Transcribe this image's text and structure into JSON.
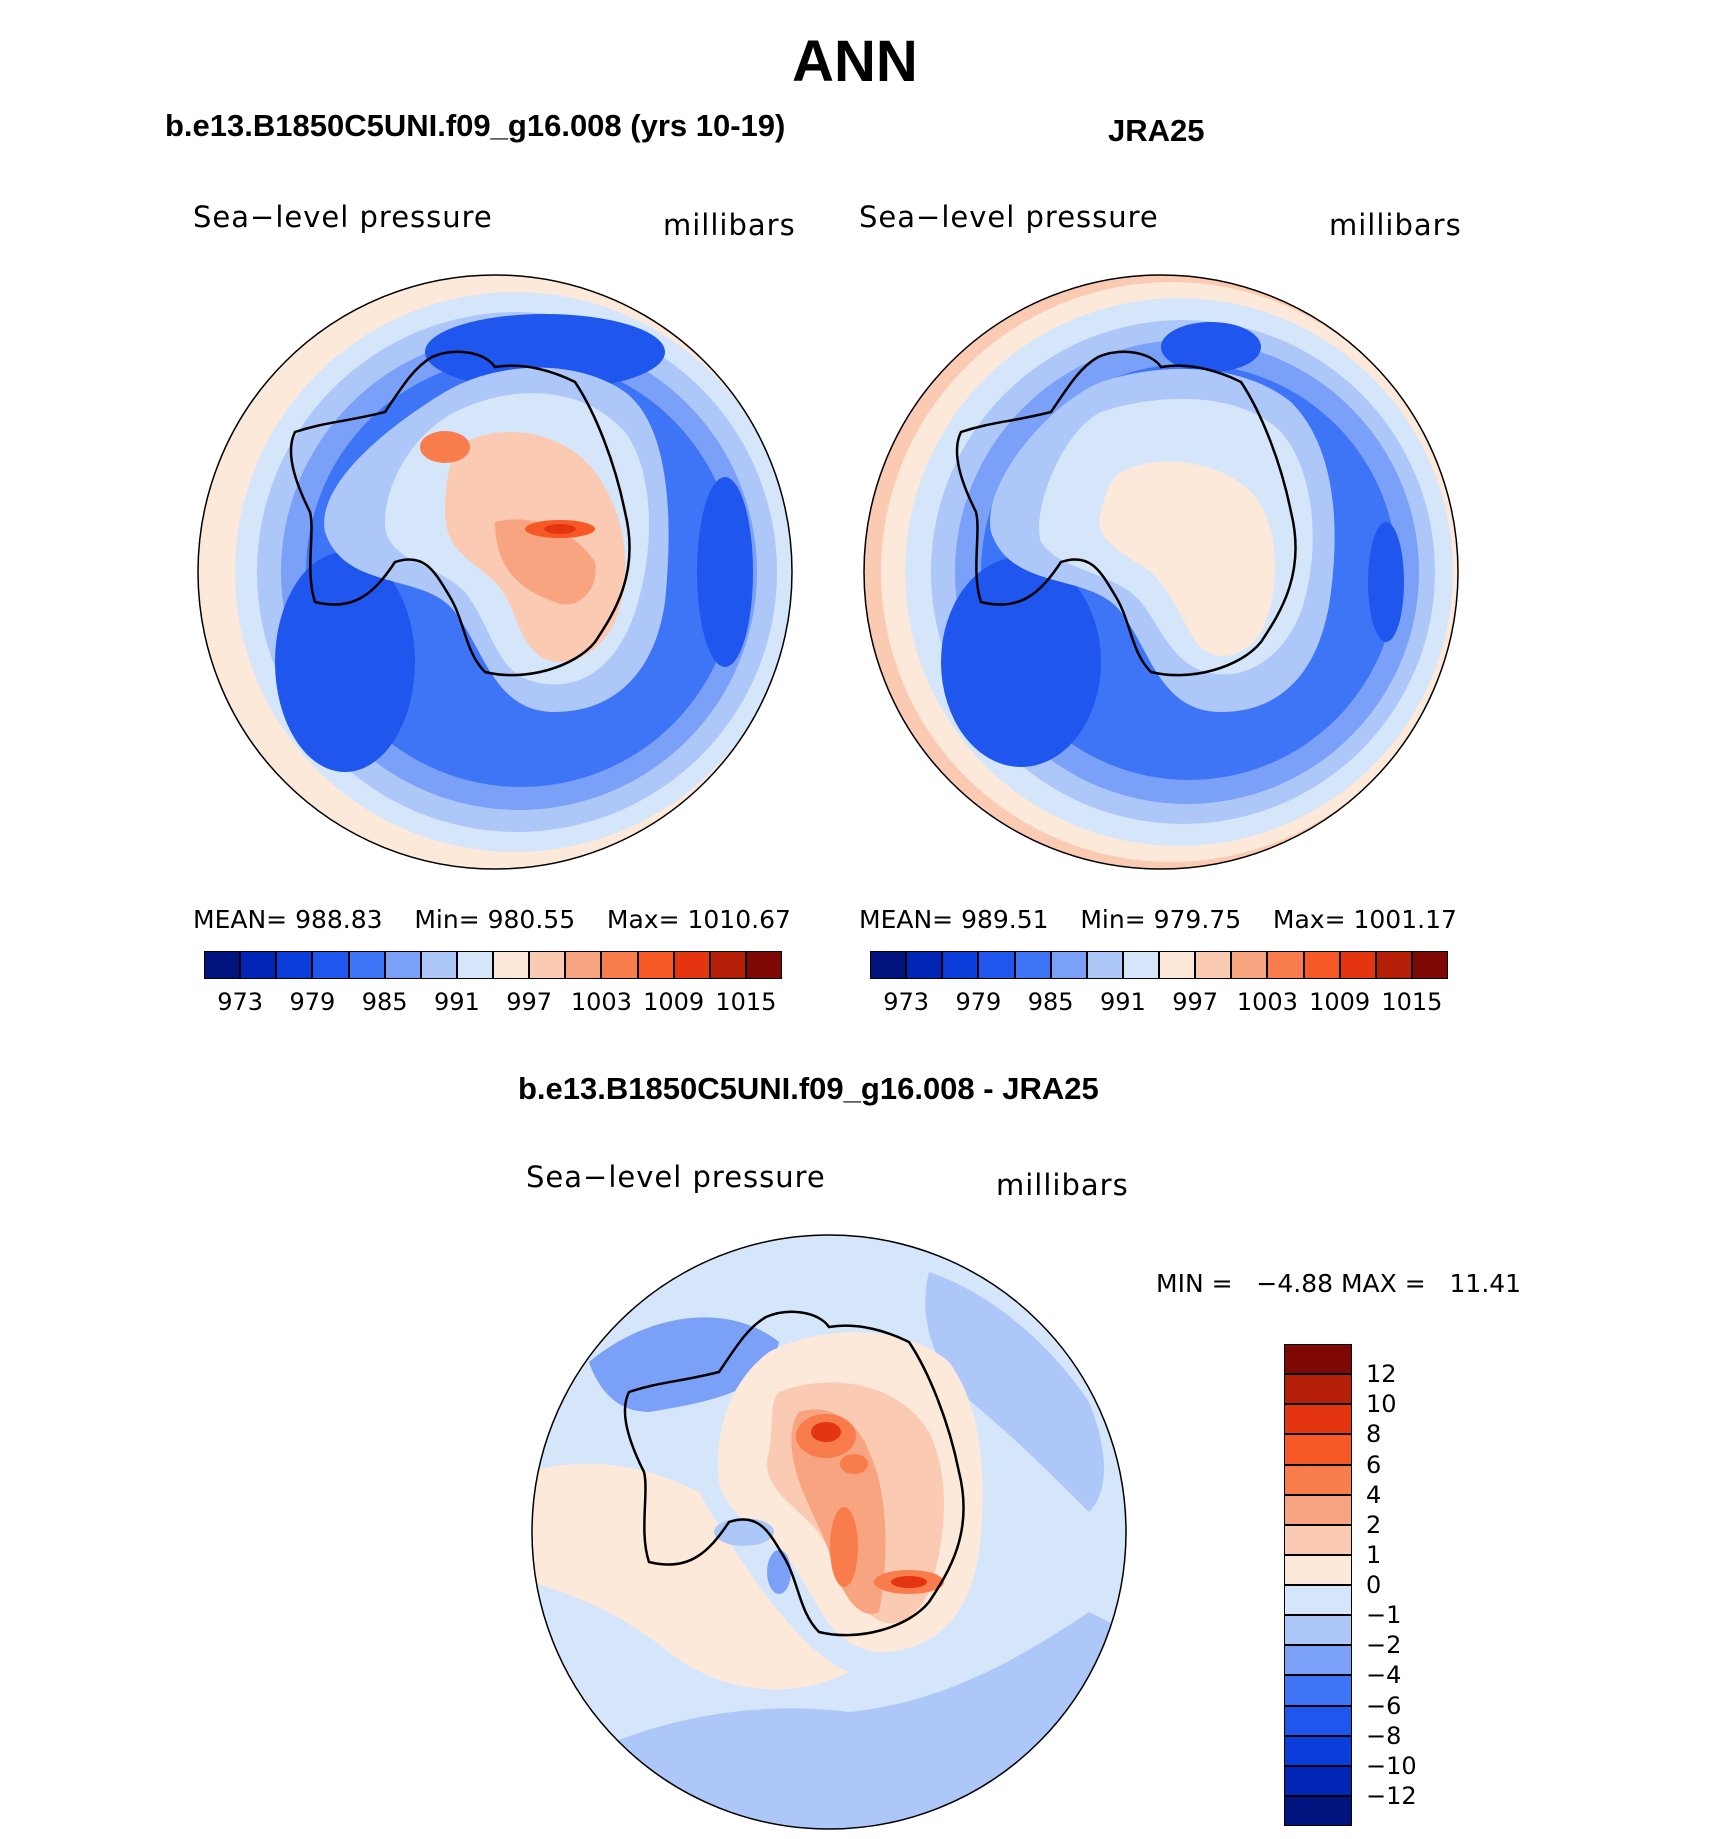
{
  "title": "ANN",
  "colors": {
    "blue": [
      "#00137f",
      "#0126b5",
      "#0b3ddb",
      "#1e56ee",
      "#3e75f6",
      "#7aa1f7",
      "#adc7f9",
      "#d6e6fa"
    ],
    "red": [
      "#fde9da",
      "#fbcab3",
      "#f9a481",
      "#f87c4c",
      "#f65926",
      "#e53510",
      "#b51e07",
      "#7e0804"
    ],
    "diff": [
      "#00137f",
      "#0126b5",
      "#0b3ddb",
      "#1e56ee",
      "#3e75f6",
      "#7aa1f7",
      "#adc7f9",
      "#d6e6fa",
      "#fde9da",
      "#fbcab3",
      "#f9a481",
      "#f87c4c",
      "#f65926",
      "#e53510",
      "#b51e07",
      "#7e0804"
    ]
  },
  "panels": {
    "model": {
      "title": "b.e13.B1850C5UNI.f09_g16.008 (yrs 10-19)",
      "left_label": "Sea−level  pressure",
      "right_label": "millibars",
      "stats": {
        "mean_label": "MEAN=",
        "mean": "988.83",
        "min_label": "Min=",
        "min": "980.55",
        "max_label": "Max=",
        "max": "1010.67"
      },
      "colorbar_ticks": [
        "973",
        "979",
        "985",
        "991",
        "997",
        "1003",
        "1009",
        "1015"
      ]
    },
    "obs": {
      "title": "JRA25",
      "left_label": "Sea−level  pressure",
      "right_label": "millibars",
      "stats": {
        "mean_label": "MEAN=",
        "mean": "989.51",
        "min_label": "Min=",
        "min": "979.75",
        "max_label": "Max=",
        "max": "1001.17"
      },
      "colorbar_ticks": [
        "973",
        "979",
        "985",
        "991",
        "997",
        "1003",
        "1009",
        "1015"
      ]
    },
    "diff": {
      "title": "b.e13.B1850C5UNI.f09_g16.008 - JRA25",
      "left_label": "Sea−level  pressure",
      "right_label": "millibars",
      "stats": {
        "min_label": "MIN =",
        "min": "−4.88",
        "max_label": "MAX =",
        "max": "11.41"
      },
      "colorbar_ticks": [
        "12",
        "10",
        "8",
        "6",
        "4",
        "2",
        "1",
        "0",
        "−1",
        "−2",
        "−4",
        "−6",
        "−8",
        "−10",
        "−12"
      ]
    }
  }
}
